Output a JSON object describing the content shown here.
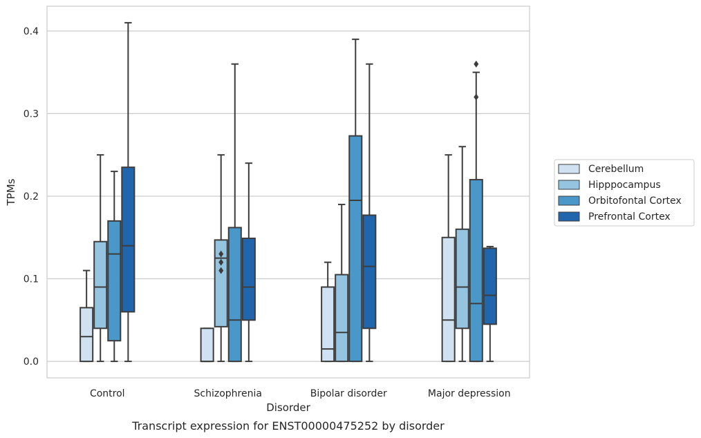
{
  "chart_data": {
    "type": "box",
    "xlabel": "Disorder",
    "ylabel": "TPMs",
    "caption": "Transcript expression for ENST00000475252 by disorder",
    "ylim": [
      -0.02,
      0.43
    ],
    "yticks": [
      0.0,
      0.1,
      0.2,
      0.3,
      0.4
    ],
    "ytick_labels": [
      "0.0",
      "0.1",
      "0.2",
      "0.3",
      "0.4"
    ],
    "grid": "horizontal",
    "legend_position": "right",
    "categories": [
      "Control",
      "Schizophrenia",
      "Bipolar disorder",
      "Major depression"
    ],
    "series": [
      {
        "name": "Cerebellum",
        "color": "#d0e1f2",
        "boxes": [
          {
            "whisker_low": 0.0,
            "q1": 0.0,
            "median": 0.03,
            "q3": 0.065,
            "whisker_high": 0.11,
            "outliers": []
          },
          {
            "whisker_low": 0.0,
            "q1": 0.0,
            "median": 0.0,
            "q3": 0.04,
            "whisker_high": 0.04,
            "outliers": []
          },
          {
            "whisker_low": 0.0,
            "q1": 0.0,
            "median": 0.015,
            "q3": 0.09,
            "whisker_high": 0.12,
            "outliers": []
          },
          {
            "whisker_low": 0.0,
            "q1": 0.0,
            "median": 0.05,
            "q3": 0.15,
            "whisker_high": 0.25,
            "outliers": []
          }
        ]
      },
      {
        "name": "Hipppocampus",
        "color": "#94c4df",
        "boxes": [
          {
            "whisker_low": 0.0,
            "q1": 0.04,
            "median": 0.09,
            "q3": 0.145,
            "whisker_high": 0.25,
            "outliers": []
          },
          {
            "whisker_low": 0.0,
            "q1": 0.042,
            "median": 0.125,
            "q3": 0.147,
            "whisker_high": 0.25,
            "outliers": [
              0.11,
              0.12,
              0.13
            ]
          },
          {
            "whisker_low": 0.0,
            "q1": 0.0,
            "median": 0.035,
            "q3": 0.105,
            "whisker_high": 0.19,
            "outliers": []
          },
          {
            "whisker_low": 0.0,
            "q1": 0.04,
            "median": 0.09,
            "q3": 0.16,
            "whisker_high": 0.26,
            "outliers": []
          }
        ]
      },
      {
        "name": "Orbitofontal Cortex",
        "color": "#4a98c9",
        "boxes": [
          {
            "whisker_low": 0.0,
            "q1": 0.025,
            "median": 0.13,
            "q3": 0.17,
            "whisker_high": 0.23,
            "outliers": []
          },
          {
            "whisker_low": 0.0,
            "q1": 0.0,
            "median": 0.05,
            "q3": 0.162,
            "whisker_high": 0.36,
            "outliers": []
          },
          {
            "whisker_low": 0.0,
            "q1": 0.0,
            "median": 0.195,
            "q3": 0.273,
            "whisker_high": 0.39,
            "outliers": []
          },
          {
            "whisker_low": 0.0,
            "q1": 0.0,
            "median": 0.07,
            "q3": 0.22,
            "whisker_high": 0.35,
            "outliers": [
              0.32,
              0.36
            ]
          }
        ]
      },
      {
        "name": "Prefrontal Cortex",
        "color": "#2166ac",
        "boxes": [
          {
            "whisker_low": 0.0,
            "q1": 0.06,
            "median": 0.14,
            "q3": 0.235,
            "whisker_high": 0.41,
            "outliers": []
          },
          {
            "whisker_low": 0.0,
            "q1": 0.05,
            "median": 0.09,
            "q3": 0.149,
            "whisker_high": 0.24,
            "outliers": []
          },
          {
            "whisker_low": 0.0,
            "q1": 0.04,
            "median": 0.115,
            "q3": 0.177,
            "whisker_high": 0.36,
            "outliers": []
          },
          {
            "whisker_low": 0.0,
            "q1": 0.045,
            "median": 0.08,
            "q3": 0.137,
            "whisker_high": 0.139,
            "outliers": []
          }
        ]
      }
    ]
  }
}
